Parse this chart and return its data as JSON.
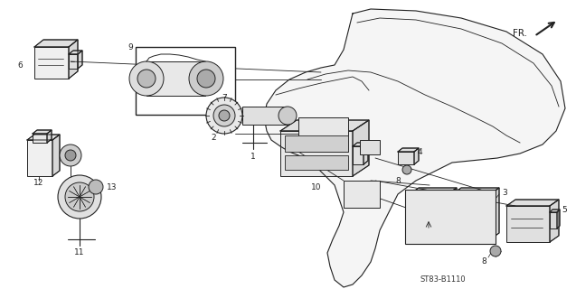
{
  "background_color": "#ffffff",
  "line_color": "#222222",
  "part_number": "ST83-B1110",
  "figsize": [
    6.37,
    3.2
  ],
  "dpi": 100
}
